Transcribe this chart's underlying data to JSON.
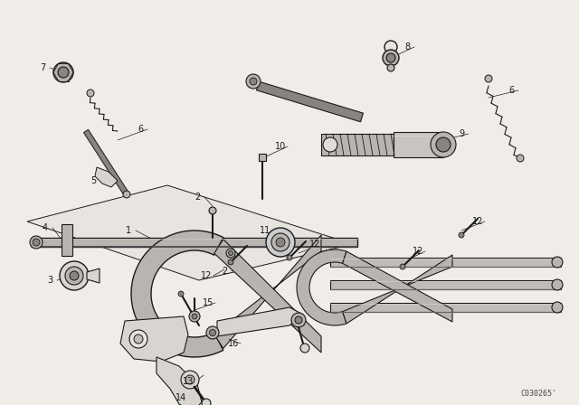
{
  "bg_color": "#f0ede8",
  "fig_width": 6.4,
  "fig_height": 4.48,
  "dpi": 100,
  "watermark": "C030265'",
  "lc": "#1a1a1a",
  "fc_light": "#d8d5d0",
  "fc_mid": "#b8b5b0",
  "fc_dark": "#888580",
  "label_fontsize": 7.0
}
